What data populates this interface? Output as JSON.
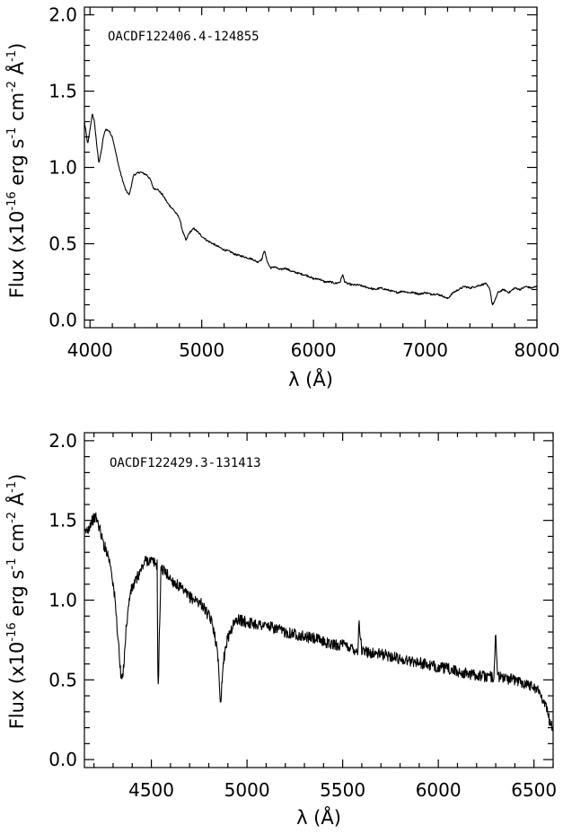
{
  "chart_data": [
    {
      "type": "line",
      "annotation": "OACDF122406.4-124855",
      "xlabel": "λ (Å)",
      "ylabel": {
        "prefix": "Flux (x10",
        "exp": "-16",
        "mid1": " erg s",
        "s_exp": "-1",
        "mid2": " cm",
        "cm_exp": "-2",
        "mid3": " Å",
        "a_exp": "-1",
        "suffix": ")"
      },
      "xlim": [
        3950,
        8000
      ],
      "ylim": [
        -0.05,
        2.05
      ],
      "xticks": [
        4000,
        5000,
        6000,
        7000,
        8000
      ],
      "xtick_labels": [
        "4000",
        "5000",
        "6000",
        "7000",
        "8000"
      ],
      "xminor_step": 200,
      "yticks": [
        0.0,
        0.5,
        1.0,
        1.5,
        2.0
      ],
      "ytick_labels": [
        "0.0",
        "0.5",
        "1.0",
        "1.5",
        "2.0"
      ],
      "yminor_step": 0.1,
      "grid": false,
      "series": [
        {
          "color": "#000000",
          "x": [
            3950,
            3980,
            4000,
            4020,
            4040,
            4060,
            4080,
            4100,
            4120,
            4140,
            4170,
            4200,
            4230,
            4260,
            4290,
            4320,
            4350,
            4370,
            4390,
            4420,
            4450,
            4480,
            4510,
            4540,
            4570,
            4600,
            4650,
            4700,
            4750,
            4800,
            4830,
            4860,
            4880,
            4900,
            4930,
            4960,
            5000,
            5050,
            5100,
            5150,
            5200,
            5250,
            5300,
            5350,
            5400,
            5450,
            5500,
            5540,
            5560,
            5580,
            5600,
            5620,
            5650,
            5700,
            5750,
            5800,
            5850,
            5900,
            5950,
            6000,
            6050,
            6100,
            6150,
            6200,
            6240,
            6260,
            6280,
            6300,
            6350,
            6400,
            6450,
            6500,
            6550,
            6600,
            6650,
            6700,
            6750,
            6800,
            6850,
            6900,
            6950,
            7000,
            7050,
            7100,
            7150,
            7200,
            7250,
            7300,
            7350,
            7400,
            7450,
            7500,
            7540,
            7580,
            7600,
            7620,
            7650,
            7700,
            7750,
            7800,
            7850,
            7900,
            7950,
            8000
          ],
          "y": [
            1.3,
            1.15,
            1.25,
            1.35,
            1.3,
            1.15,
            1.03,
            1.1,
            1.2,
            1.25,
            1.24,
            1.2,
            1.1,
            1.0,
            0.92,
            0.85,
            0.82,
            0.88,
            0.95,
            0.96,
            0.97,
            0.96,
            0.95,
            0.92,
            0.86,
            0.86,
            0.82,
            0.76,
            0.72,
            0.67,
            0.58,
            0.52,
            0.56,
            0.58,
            0.6,
            0.58,
            0.55,
            0.52,
            0.5,
            0.48,
            0.46,
            0.45,
            0.43,
            0.42,
            0.41,
            0.4,
            0.38,
            0.4,
            0.46,
            0.4,
            0.36,
            0.34,
            0.35,
            0.33,
            0.34,
            0.32,
            0.31,
            0.3,
            0.29,
            0.27,
            0.27,
            0.25,
            0.25,
            0.24,
            0.25,
            0.3,
            0.25,
            0.24,
            0.23,
            0.23,
            0.22,
            0.21,
            0.2,
            0.21,
            0.2,
            0.19,
            0.18,
            0.19,
            0.18,
            0.18,
            0.17,
            0.18,
            0.17,
            0.17,
            0.16,
            0.14,
            0.18,
            0.2,
            0.22,
            0.21,
            0.22,
            0.23,
            0.24,
            0.2,
            0.1,
            0.12,
            0.18,
            0.2,
            0.18,
            0.21,
            0.2,
            0.22,
            0.21,
            0.22
          ]
        }
      ]
    },
    {
      "type": "line",
      "annotation": "OACDF122429.3-131413",
      "xlabel": "λ (Å)",
      "ylabel": {
        "prefix": "Flux (x10",
        "exp": "-16",
        "mid1": " erg s",
        "s_exp": "-1",
        "mid2": " cm",
        "cm_exp": "-2",
        "mid3": " Å",
        "a_exp": "-1",
        "suffix": ")"
      },
      "xlim": [
        4150,
        6600
      ],
      "ylim": [
        -0.05,
        2.05
      ],
      "xticks": [
        4500,
        5000,
        5500,
        6000,
        6500
      ],
      "xtick_labels": [
        "4500",
        "5000",
        "5500",
        "6000",
        "6500"
      ],
      "xminor_step": 100,
      "yticks": [
        0.0,
        0.5,
        1.0,
        1.5,
        2.0
      ],
      "ytick_labels": [
        "0.0",
        "0.5",
        "1.0",
        "1.5",
        "2.0"
      ],
      "yminor_step": 0.1,
      "grid": false,
      "series": [
        {
          "color": "#000000",
          "x": [
            4150,
            4170,
            4190,
            4210,
            4230,
            4250,
            4270,
            4290,
            4310,
            4330,
            4340,
            4350,
            4370,
            4390,
            4410,
            4430,
            4450,
            4470,
            4490,
            4510,
            4530,
            4535,
            4550,
            4570,
            4590,
            4610,
            4630,
            4650,
            4670,
            4700,
            4730,
            4760,
            4790,
            4810,
            4830,
            4850,
            4862,
            4875,
            4890,
            4910,
            4930,
            4950,
            5000,
            5050,
            5100,
            5150,
            5200,
            5250,
            5300,
            5350,
            5400,
            5450,
            5500,
            5550,
            5580,
            5585,
            5600,
            5650,
            5700,
            5750,
            5800,
            5850,
            5900,
            5950,
            6000,
            6050,
            6100,
            6150,
            6200,
            6250,
            6290,
            6300,
            6310,
            6350,
            6400,
            6450,
            6500,
            6530,
            6560,
            6580,
            6600
          ],
          "y": [
            1.42,
            1.45,
            1.5,
            1.52,
            1.45,
            1.35,
            1.3,
            1.2,
            1.0,
            0.7,
            0.52,
            0.5,
            0.85,
            1.05,
            1.1,
            1.15,
            1.2,
            1.25,
            1.25,
            1.24,
            1.22,
            0.4,
            1.2,
            1.18,
            1.15,
            1.12,
            1.1,
            1.08,
            1.05,
            1.02,
            1.0,
            0.98,
            0.92,
            0.88,
            0.8,
            0.62,
            0.35,
            0.6,
            0.72,
            0.8,
            0.85,
            0.88,
            0.86,
            0.85,
            0.84,
            0.82,
            0.8,
            0.79,
            0.77,
            0.76,
            0.74,
            0.72,
            0.72,
            0.7,
            0.68,
            0.88,
            0.68,
            0.67,
            0.66,
            0.65,
            0.63,
            0.62,
            0.61,
            0.59,
            0.58,
            0.57,
            0.55,
            0.54,
            0.53,
            0.52,
            0.52,
            0.8,
            0.52,
            0.51,
            0.5,
            0.48,
            0.46,
            0.42,
            0.35,
            0.25,
            0.2
          ]
        }
      ]
    }
  ]
}
